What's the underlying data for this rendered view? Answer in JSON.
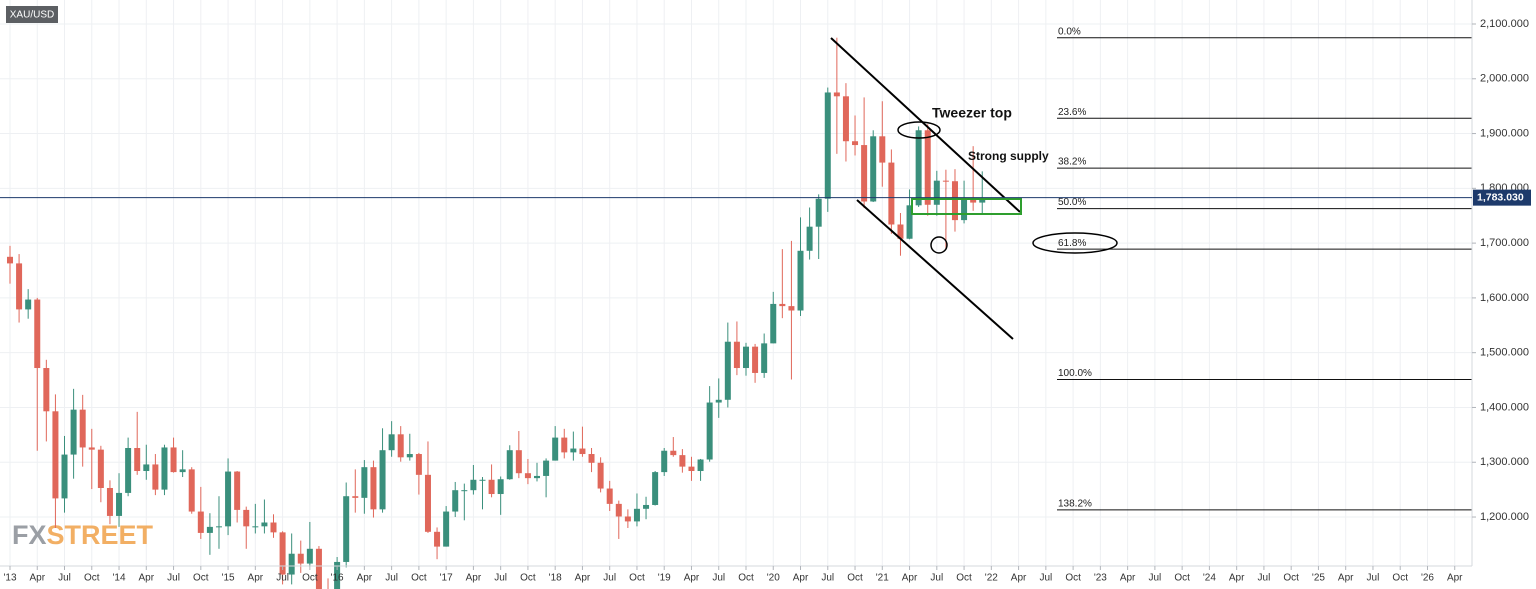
{
  "chart_data": {
    "type": "candlestick",
    "watermark": "FXSTREET",
    "annotations": [
      "Tweezer top",
      "Strong supply"
    ],
    "x": [
      "2013-01",
      "2013-02",
      "2013-03",
      "2013-04",
      "2013-05",
      "2013-06",
      "2013-07",
      "2013-08",
      "2013-09",
      "2013-10",
      "2013-11",
      "2013-12",
      "2014-01",
      "2014-02",
      "2014-03",
      "2014-04",
      "2014-05",
      "2014-06",
      "2014-07",
      "2014-08",
      "2014-09",
      "2014-10",
      "2014-11",
      "2014-12",
      "2015-01",
      "2015-02",
      "2015-03",
      "2015-04",
      "2015-05",
      "2015-06",
      "2015-07",
      "2015-08",
      "2015-09",
      "2015-10",
      "2015-11",
      "2015-12",
      "2016-01",
      "2016-02",
      "2016-03",
      "2016-04",
      "2016-05",
      "2016-06",
      "2016-07",
      "2016-08",
      "2016-09",
      "2016-10",
      "2016-11",
      "2016-12",
      "2017-01",
      "2017-02",
      "2017-03",
      "2017-04",
      "2017-05",
      "2017-06",
      "2017-07",
      "2017-08",
      "2017-09",
      "2017-10",
      "2017-11",
      "2017-12",
      "2018-01",
      "2018-02",
      "2018-03",
      "2018-04",
      "2018-05",
      "2018-06",
      "2018-07",
      "2018-08",
      "2018-09",
      "2018-10",
      "2018-11",
      "2018-12",
      "2019-01",
      "2019-02",
      "2019-03",
      "2019-04",
      "2019-05",
      "2019-06",
      "2019-07",
      "2019-08",
      "2019-09",
      "2019-10",
      "2019-11",
      "2019-12",
      "2020-01",
      "2020-02",
      "2020-03",
      "2020-04",
      "2020-05",
      "2020-06",
      "2020-07",
      "2020-08",
      "2020-09",
      "2020-10",
      "2020-11",
      "2020-12",
      "2021-01",
      "2021-02",
      "2021-03",
      "2021-04",
      "2021-05",
      "2021-06",
      "2021-07",
      "2021-08",
      "2021-09",
      "2021-10",
      "2021-11",
      "2021-12"
    ],
    "series": [
      {
        "name": "XAU/USD",
        "up_color": "#3a8f7c",
        "down_color": "#e0675a",
        "open": [
          1675,
          1663,
          1579,
          1597,
          1472,
          1393,
          1234,
          1314,
          1396,
          1327,
          1323,
          1253,
          1202,
          1244,
          1326,
          1284,
          1296,
          1250,
          1327,
          1282,
          1287,
          1210,
          1171,
          1182,
          1183,
          1283,
          1213,
          1183,
          1183,
          1190,
          1172,
          1095,
          1133,
          1115,
          1142,
          1065,
          1061,
          1118,
          1238,
          1235,
          1291,
          1214,
          1322,
          1351,
          1309,
          1315,
          1277,
          1173,
          1146,
          1210,
          1249,
          1249,
          1268,
          1268,
          1242,
          1269,
          1322,
          1280,
          1271,
          1275,
          1303,
          1345,
          1318,
          1325,
          1315,
          1299,
          1252,
          1224,
          1201,
          1192,
          1215,
          1222,
          1282,
          1321,
          1313,
          1292,
          1284,
          1305,
          1409,
          1414,
          1520,
          1472,
          1511,
          1463,
          1517,
          1589,
          1585,
          1577,
          1686,
          1730,
          1781,
          1975,
          1968,
          1886,
          1879,
          1776,
          1895,
          1847,
          1734,
          1708,
          1769,
          1906,
          1770,
          1814,
          1813,
          1742,
          1783,
          1774
        ],
        "high": [
          1695,
          1680,
          1616,
          1600,
          1487,
          1424,
          1348,
          1434,
          1423,
          1361,
          1330,
          1267,
          1280,
          1345,
          1392,
          1332,
          1315,
          1332,
          1345,
          1322,
          1291,
          1255,
          1207,
          1238,
          1307,
          1284,
          1219,
          1224,
          1232,
          1205,
          1174,
          1170,
          1157,
          1191,
          1147,
          1088,
          1127,
          1263,
          1287,
          1304,
          1303,
          1362,
          1375,
          1366,
          1352,
          1317,
          1338,
          1181,
          1220,
          1264,
          1261,
          1295,
          1273,
          1296,
          1274,
          1331,
          1357,
          1306,
          1299,
          1307,
          1366,
          1361,
          1356,
          1365,
          1326,
          1309,
          1266,
          1230,
          1214,
          1243,
          1237,
          1284,
          1326,
          1346,
          1324,
          1310,
          1306,
          1439,
          1453,
          1555,
          1557,
          1518,
          1516,
          1535,
          1611,
          1689,
          1704,
          1747,
          1765,
          1789,
          1984,
          2075,
          1992,
          1933,
          1966,
          1906,
          1959,
          1871,
          1755,
          1798,
          1913,
          1917,
          1832,
          1834,
          1835,
          1814,
          1877,
          1831
        ],
        "low": [
          1626,
          1555,
          1562,
          1321,
          1338,
          1180,
          1208,
          1270,
          1292,
          1251,
          1227,
          1187,
          1182,
          1238,
          1277,
          1268,
          1240,
          1240,
          1281,
          1273,
          1206,
          1160,
          1131,
          1142,
          1167,
          1190,
          1142,
          1170,
          1170,
          1162,
          1077,
          1077,
          1098,
          1111,
          1052,
          1046,
          1061,
          1108,
          1208,
          1206,
          1199,
          1208,
          1310,
          1301,
          1303,
          1241,
          1171,
          1123,
          1146,
          1200,
          1194,
          1241,
          1214,
          1236,
          1204,
          1268,
          1271,
          1260,
          1265,
          1236,
          1303,
          1307,
          1303,
          1310,
          1282,
          1245,
          1211,
          1160,
          1180,
          1183,
          1196,
          1221,
          1275,
          1310,
          1281,
          1266,
          1266,
          1301,
          1381,
          1400,
          1459,
          1458,
          1445,
          1454,
          1517,
          1563,
          1451,
          1567,
          1670,
          1671,
          1757,
          1863,
          1849,
          1860,
          1764,
          1775,
          1803,
          1717,
          1677,
          1707,
          1766,
          1750,
          1750,
          1688,
          1721,
          1736,
          1759,
          1753
        ],
        "close": [
          1663,
          1579,
          1597,
          1472,
          1393,
          1234,
          1314,
          1396,
          1327,
          1323,
          1253,
          1202,
          1244,
          1326,
          1284,
          1296,
          1250,
          1327,
          1282,
          1287,
          1210,
          1171,
          1182,
          1183,
          1283,
          1213,
          1183,
          1183,
          1190,
          1172,
          1095,
          1133,
          1115,
          1142,
          1065,
          1061,
          1118,
          1238,
          1235,
          1291,
          1214,
          1322,
          1351,
          1309,
          1315,
          1277,
          1173,
          1146,
          1210,
          1249,
          1249,
          1268,
          1268,
          1242,
          1269,
          1322,
          1280,
          1271,
          1275,
          1303,
          1345,
          1318,
          1325,
          1315,
          1299,
          1252,
          1224,
          1201,
          1192,
          1215,
          1222,
          1282,
          1321,
          1313,
          1292,
          1284,
          1305,
          1409,
          1414,
          1520,
          1472,
          1511,
          1463,
          1517,
          1589,
          1585,
          1577,
          1686,
          1730,
          1781,
          1975,
          1968,
          1886,
          1879,
          1776,
          1895,
          1847,
          1734,
          1708,
          1769,
          1906,
          1770,
          1814,
          1813,
          1742,
          1783,
          1774,
          1783
        ]
      }
    ],
    "last_price": {
      "value": 1783.03,
      "label": "1,783.030"
    },
    "fib_levels": [
      {
        "label": "0.0%",
        "value": 2075
      },
      {
        "label": "23.6%",
        "value": 1928
      },
      {
        "label": "38.2%",
        "value": 1837
      },
      {
        "label": "50.0%",
        "value": 1763
      },
      {
        "label": "61.8%",
        "value": 1689
      },
      {
        "label": "100.0%",
        "value": 1451
      },
      {
        "label": "138.2%",
        "value": 1213
      }
    ],
    "ylim": [
      1110.6,
      2143.8
    ],
    "yticks": [
      {
        "value": 1200,
        "label": "1,200.000"
      },
      {
        "value": 1300,
        "label": "1,300.000"
      },
      {
        "value": 1400,
        "label": "1,400.000"
      },
      {
        "value": 1500,
        "label": "1,500.000"
      },
      {
        "value": 1600,
        "label": "1,600.000"
      },
      {
        "value": 1700,
        "label": "1,700.000"
      },
      {
        "value": 1800,
        "label": "1,800.000"
      },
      {
        "value": 1900,
        "label": "1,900.000"
      },
      {
        "value": 2000,
        "label": "2,000.000"
      },
      {
        "value": 2100,
        "label": "2,100.000"
      }
    ],
    "xlim": [
      "2012-12",
      "2026-06"
    ],
    "xticks": [
      {
        "value": "2013-01",
        "label": "'13"
      },
      {
        "value": "2013-04",
        "label": "Apr"
      },
      {
        "value": "2013-07",
        "label": "Jul"
      },
      {
        "value": "2013-10",
        "label": "Oct"
      },
      {
        "value": "2014-01",
        "label": "'14"
      },
      {
        "value": "2014-04",
        "label": "Apr"
      },
      {
        "value": "2014-07",
        "label": "Jul"
      },
      {
        "value": "2014-10",
        "label": "Oct"
      },
      {
        "value": "2015-01",
        "label": "'15"
      },
      {
        "value": "2015-04",
        "label": "Apr"
      },
      {
        "value": "2015-07",
        "label": "Jul"
      },
      {
        "value": "2015-10",
        "label": "Oct"
      },
      {
        "value": "2016-01",
        "label": "'16"
      },
      {
        "value": "2016-04",
        "label": "Apr"
      },
      {
        "value": "2016-07",
        "label": "Jul"
      },
      {
        "value": "2016-10",
        "label": "Oct"
      },
      {
        "value": "2017-01",
        "label": "'17"
      },
      {
        "value": "2017-04",
        "label": "Apr"
      },
      {
        "value": "2017-07",
        "label": "Jul"
      },
      {
        "value": "2017-10",
        "label": "Oct"
      },
      {
        "value": "2018-01",
        "label": "'18"
      },
      {
        "value": "2018-04",
        "label": "Apr"
      },
      {
        "value": "2018-07",
        "label": "Jul"
      },
      {
        "value": "2018-10",
        "label": "Oct"
      },
      {
        "value": "2019-01",
        "label": "'19"
      },
      {
        "value": "2019-04",
        "label": "Apr"
      },
      {
        "value": "2019-07",
        "label": "Jul"
      },
      {
        "value": "2019-10",
        "label": "Oct"
      },
      {
        "value": "2020-01",
        "label": "'20"
      },
      {
        "value": "2020-04",
        "label": "Apr"
      },
      {
        "value": "2020-07",
        "label": "Jul"
      },
      {
        "value": "2020-10",
        "label": "Oct"
      },
      {
        "value": "2021-01",
        "label": "'21"
      },
      {
        "value": "2021-04",
        "label": "Apr"
      },
      {
        "value": "2021-07",
        "label": "Jul"
      },
      {
        "value": "2021-10",
        "label": "Oct"
      },
      {
        "value": "2022-01",
        "label": "'22"
      },
      {
        "value": "2022-04",
        "label": "Apr"
      },
      {
        "value": "2022-07",
        "label": "Jul"
      },
      {
        "value": "2022-10",
        "label": "Oct"
      },
      {
        "value": "2023-01",
        "label": "'23"
      },
      {
        "value": "2023-04",
        "label": "Apr"
      },
      {
        "value": "2023-07",
        "label": "Jul"
      },
      {
        "value": "2023-10",
        "label": "Oct"
      },
      {
        "value": "2024-01",
        "label": "'24"
      },
      {
        "value": "2024-04",
        "label": "Apr"
      },
      {
        "value": "2024-07",
        "label": "Jul"
      },
      {
        "value": "2024-10",
        "label": "Oct"
      },
      {
        "value": "2025-01",
        "label": "'25"
      },
      {
        "value": "2025-04",
        "label": "Apr"
      },
      {
        "value": "2025-07",
        "label": "Jul"
      },
      {
        "value": "2025-10",
        "label": "Oct"
      },
      {
        "value": "2026-01",
        "label": "'26"
      },
      {
        "value": "2026-04",
        "label": "Apr"
      }
    ],
    "grid": true
  }
}
